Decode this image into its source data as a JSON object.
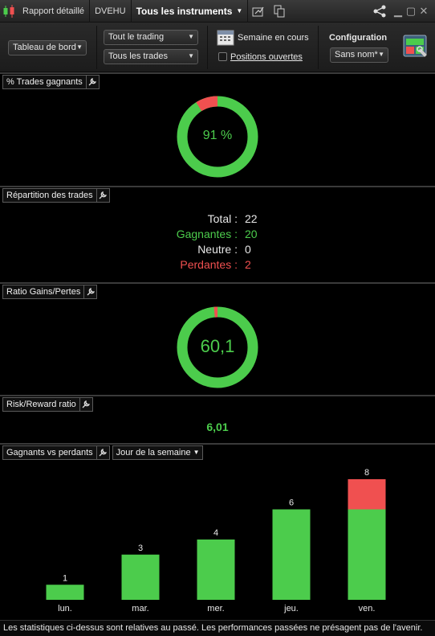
{
  "titlebar": {
    "tab1": "Rapport détaillé",
    "tab2": "DVEHU",
    "tab3": "Tous les instruments"
  },
  "toolbar": {
    "dashboard": "Tableau de bord",
    "trading_filter": "Tout le trading",
    "trades_filter": "Tous les trades",
    "period": "Semaine en cours",
    "open_positions": "Positions ouvertes",
    "config_title": "Configuration",
    "config_value": "Sans nom*"
  },
  "win_pct": {
    "title": "% Trades gagnants",
    "value_label": "91 %",
    "fraction": 0.91
  },
  "repartition": {
    "title": "Répartition des trades",
    "rows": [
      {
        "label": "Total :",
        "value": "22",
        "color": "#e6e6e6"
      },
      {
        "label": "Gagnantes :",
        "value": "20",
        "color": "#4ccc4c"
      },
      {
        "label": "Neutre :",
        "value": "0",
        "color": "#e6e6e6"
      },
      {
        "label": "Perdantes :",
        "value": "2",
        "color": "#f05050"
      }
    ]
  },
  "ratio": {
    "title": "Ratio Gains/Pertes",
    "value_label": "60,1",
    "fraction": 0.984
  },
  "risk_reward": {
    "title": "Risk/Reward ratio",
    "value": "6,01"
  },
  "gvp": {
    "title": "Gagnants vs perdants",
    "selector": "Jour de la semaine"
  },
  "chart_data": {
    "type": "bar",
    "stacked": true,
    "categories": [
      "lun.",
      "mar.",
      "mer.",
      "jeu.",
      "ven."
    ],
    "totals": [
      "1",
      "3",
      "4",
      "6",
      "8"
    ],
    "series": [
      {
        "values": [
          1,
          3,
          4,
          6,
          6
        ],
        "color": "#4ccc4c"
      },
      {
        "values": [
          0,
          0,
          0,
          0,
          2
        ],
        "color": "#f05050"
      }
    ],
    "ylim": [
      0,
      8
    ]
  },
  "footer": {
    "text": "Les statistiques ci-dessus sont relatives au passé. Les performances passées ne présagent pas de l'avenir."
  },
  "colors": {
    "win": "#4ccc4c",
    "loss": "#f05050"
  }
}
